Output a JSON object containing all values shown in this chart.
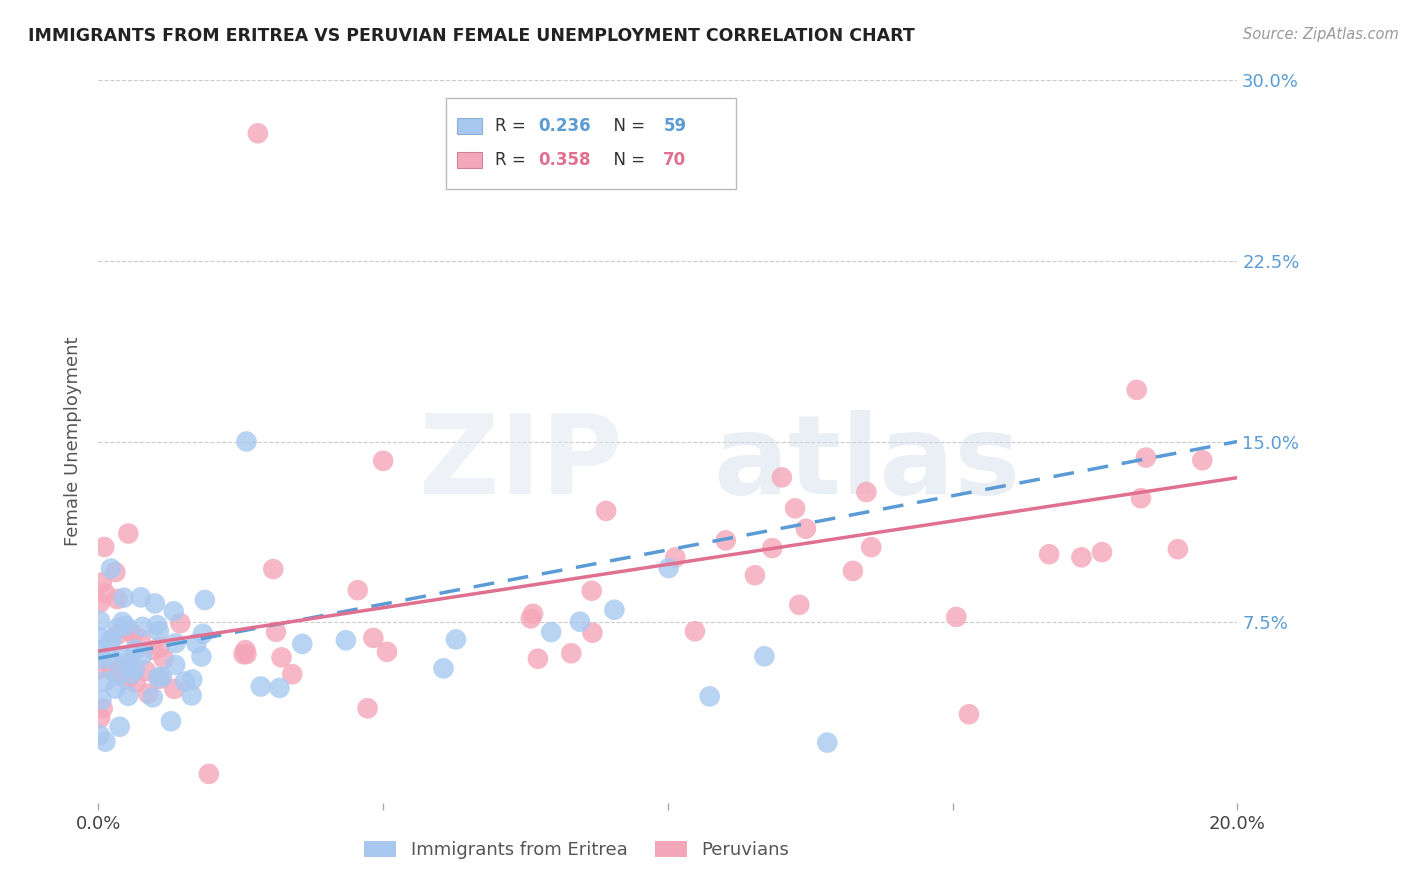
{
  "title": "IMMIGRANTS FROM ERITREA VS PERUVIAN FEMALE UNEMPLOYMENT CORRELATION CHART",
  "source": "Source: ZipAtlas.com",
  "ylabel": "Female Unemployment",
  "xlim": [
    0.0,
    0.2
  ],
  "ylim": [
    0.0,
    0.3
  ],
  "ytick_positions": [
    0.0,
    0.075,
    0.15,
    0.225,
    0.3
  ],
  "ytick_labels": [
    "",
    "7.5%",
    "15.0%",
    "22.5%",
    "30.0%"
  ],
  "xtick_positions": [
    0.0,
    0.05,
    0.1,
    0.15,
    0.2
  ],
  "xtick_labels": [
    "0.0%",
    "",
    "",
    "",
    "20.0%"
  ],
  "series1_label": "Immigrants from Eritrea",
  "series1_R": 0.236,
  "series1_N": 59,
  "series1_color": "#a8c8f0",
  "series1_trend_color": "#5b9bd5",
  "series1_trend_start": 0.06,
  "series1_trend_end": 0.15,
  "series2_label": "Peruvians",
  "series2_R": 0.358,
  "series2_N": 70,
  "series2_color": "#f4a7b9",
  "series2_trend_color": "#e07090",
  "series2_trend_start": 0.063,
  "series2_trend_end": 0.135,
  "background_color": "#ffffff",
  "grid_color": "#cccccc",
  "title_color": "#222222",
  "axis_label_color": "#555555",
  "right_tick_color": "#5b9bd5",
  "watermark_zip_color": "#e0e8f0",
  "watermark_atlas_color": "#d0dcea"
}
